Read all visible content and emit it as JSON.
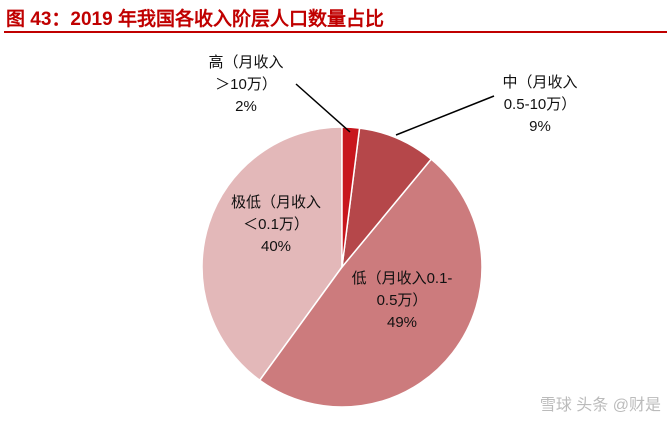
{
  "chart_data": {
    "type": "pie",
    "title": "图 43：2019 年我国各收入阶层人口数量占比",
    "categories": [
      "高（月收入＞10万）",
      "中（月收入0.5-10万）",
      "低（月收入0.1-0.5万）",
      "极低（月收入＜0.1万）"
    ],
    "values": [
      2,
      9,
      49,
      40
    ],
    "value_labels": [
      "2%",
      "9%",
      "49%",
      "40%"
    ],
    "colors": [
      "#c8161d",
      "#b5474a",
      "#cc7b7d",
      "#e3b8b9"
    ]
  },
  "watermark": "雪球 头条 @财是"
}
